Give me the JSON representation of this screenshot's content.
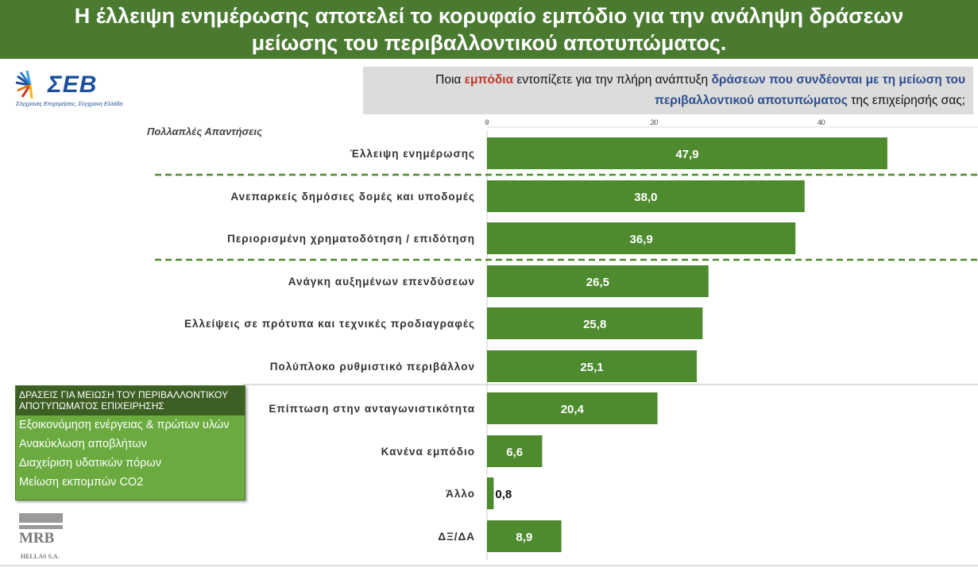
{
  "header": {
    "title_line1": "Η έλλειψη ενημέρωσης αποτελεί το κορυφαίο εμπόδιο για την ανάληψη δράσεων",
    "title_line2": "μείωσης του περιβαλλοντικού αποτυπώματος."
  },
  "logo": {
    "text": "ΣΕΒ",
    "tagline": "Σύγχρονες Επιχειρήσεις, Σύγχρονη Ελλάδα"
  },
  "question": {
    "part1": "Ποια ",
    "part2_red": "εμπόδια",
    "part3": " εντοπίζετε για την πλήρη ανάπτυξη ",
    "part4_blue": "δράσεων που συνδέονται με τη μείωση του περιβαλλοντικού αποτυπώματος",
    "part5": " της επιχείρησής σας;"
  },
  "note": "Πολλαπλές Απαντήσεις",
  "legend_box": {
    "heading": "ΔΡΑΣΕΙΣ ΓΙΑ ΜΕΙΩΣΗ ΤΟΥ ΠΕΡΙΒΑΛΛΟΝΤΙΚΟΥ ΑΠΟΤΥΠΩΜΑΤΟΣ ΕΠΙΧΕΙΡΗΣΗΣ",
    "items": [
      "Εξοικονόμηση ενέργειας & πρώτων υλών",
      "Ανακύκλωση αποβλήτων",
      "Διαχείριση υδατικών πόρων",
      "Μείωση εκπομπών CO2"
    ]
  },
  "footer_logo": {
    "text": "MRB",
    "sub": "HELLAS S.A."
  },
  "colors": {
    "title_bg": "#4a7a30",
    "bar": "#4e8a2e",
    "question_bg": "#dcdcdc"
  },
  "chart_data": {
    "type": "bar",
    "orientation": "horizontal",
    "categories": [
      "Έλλειψη ενημέρωσης",
      "Ανεπαρκείς δημόσιες δομές και υποδομές",
      "Περιορισμένη χρηματοδότηση / επιδότηση",
      "Ανάγκη αυξημένων επενδύσεων",
      "Ελλείψεις σε πρότυπα και τεχνικές προδιαγραφές",
      "Πολύπλοκο ρυθμιστικό περιβάλλον",
      "Επίπτωση στην ανταγωνιστικότητα",
      "Κανένα εμπόδιο",
      "Άλλο",
      "ΔΞ/ΔΑ"
    ],
    "values": [
      47.9,
      38.0,
      36.9,
      26.5,
      25.8,
      25.1,
      20.4,
      6.6,
      0.8,
      8.9
    ],
    "value_labels": [
      "47,9",
      "38,0",
      "36,9",
      "26,5",
      "25,8",
      "25,1",
      "20,4",
      "6,6",
      "0,8",
      "8,9"
    ],
    "xticks": [
      "0",
      "20",
      "40"
    ],
    "xlim": [
      0,
      58
    ],
    "separators_after_index": [
      0,
      2
    ],
    "grid": false
  }
}
